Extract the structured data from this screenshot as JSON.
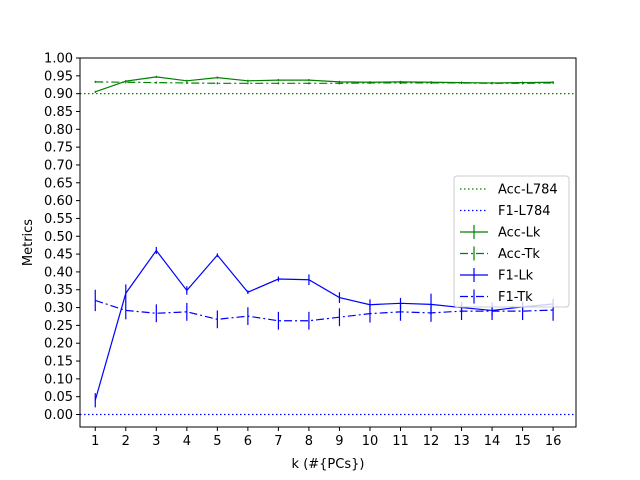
{
  "chart_data": {
    "type": "line",
    "xlabel": "k (#{PCs})",
    "ylabel": "Metrics",
    "xlim": [
      0.5,
      16.75
    ],
    "ylim": [
      -0.035,
      1.0
    ],
    "x": [
      1,
      2,
      3,
      4,
      5,
      6,
      7,
      8,
      9,
      10,
      11,
      12,
      13,
      14,
      15,
      16
    ],
    "yticks": [
      0.0,
      0.05,
      0.1,
      0.15,
      0.2,
      0.25,
      0.3,
      0.35,
      0.4,
      0.45,
      0.5,
      0.55,
      0.6,
      0.65,
      0.7,
      0.75,
      0.8,
      0.85,
      0.9,
      0.95,
      1.0
    ],
    "ytick_labels": [
      "0.00",
      "0.05",
      "0.10",
      "0.15",
      "0.20",
      "0.25",
      "0.30",
      "0.35",
      "0.40",
      "0.45",
      "0.50",
      "0.55",
      "0.60",
      "0.65",
      "0.70",
      "0.75",
      "0.80",
      "0.85",
      "0.90",
      "0.95",
      "1.00"
    ],
    "xtick_labels": [
      "1",
      "2",
      "3",
      "4",
      "5",
      "6",
      "7",
      "8",
      "9",
      "10",
      "11",
      "12",
      "13",
      "14",
      "15",
      "16"
    ],
    "hlines": [
      {
        "name": "Acc-L784",
        "y": 0.9,
        "color": "#008000",
        "dash": "1.5,2.5"
      },
      {
        "name": "F1-L784",
        "y": 0.0,
        "color": "#0000ff",
        "dash": "1.5,2.5"
      }
    ],
    "series": [
      {
        "name": "Acc-Lk",
        "color": "#008000",
        "dash": "",
        "values": [
          0.905,
          0.935,
          0.947,
          0.936,
          0.945,
          0.936,
          0.938,
          0.938,
          0.933,
          0.932,
          0.933,
          0.932,
          0.931,
          0.93,
          0.931,
          0.932
        ],
        "errors": [
          0.003,
          0.003,
          0.003,
          0.003,
          0.003,
          0.003,
          0.003,
          0.003,
          0.003,
          0.003,
          0.003,
          0.003,
          0.003,
          0.003,
          0.003,
          0.003
        ]
      },
      {
        "name": "Acc-Tk",
        "color": "#008000",
        "dash": "8,3,2,3",
        "values": [
          0.933,
          0.932,
          0.931,
          0.93,
          0.929,
          0.929,
          0.929,
          0.929,
          0.929,
          0.93,
          0.93,
          0.93,
          0.93,
          0.929,
          0.929,
          0.93
        ],
        "errors": [
          0.003,
          0.003,
          0.003,
          0.003,
          0.003,
          0.003,
          0.003,
          0.003,
          0.003,
          0.003,
          0.003,
          0.003,
          0.003,
          0.003,
          0.003,
          0.003
        ]
      },
      {
        "name": "F1-Lk",
        "color": "#0000ff",
        "dash": "",
        "values": [
          0.04,
          0.34,
          0.46,
          0.348,
          0.447,
          0.343,
          0.38,
          0.378,
          0.328,
          0.308,
          0.312,
          0.309,
          0.3,
          0.292,
          0.302,
          0.31
        ],
        "errors": [
          0.02,
          0.025,
          0.01,
          0.012,
          0.005,
          0.005,
          0.007,
          0.015,
          0.015,
          0.015,
          0.015,
          0.03,
          0.015,
          0.015,
          0.015,
          0.015
        ]
      },
      {
        "name": "F1-Tk",
        "color": "#0000ff",
        "dash": "8,3,2,3",
        "values": [
          0.32,
          0.292,
          0.284,
          0.288,
          0.267,
          0.276,
          0.263,
          0.263,
          0.273,
          0.283,
          0.288,
          0.285,
          0.29,
          0.29,
          0.29,
          0.293
        ],
        "errors": [
          0.03,
          0.025,
          0.025,
          0.025,
          0.025,
          0.025,
          0.025,
          0.025,
          0.025,
          0.025,
          0.025,
          0.025,
          0.025,
          0.025,
          0.025,
          0.03
        ]
      }
    ],
    "grid": false,
    "legend_placement": "center-right",
    "legend": [
      "Acc-L784",
      "F1-L784",
      "Acc-Lk",
      "Acc-Tk",
      "F1-Lk",
      "F1-Tk"
    ]
  }
}
